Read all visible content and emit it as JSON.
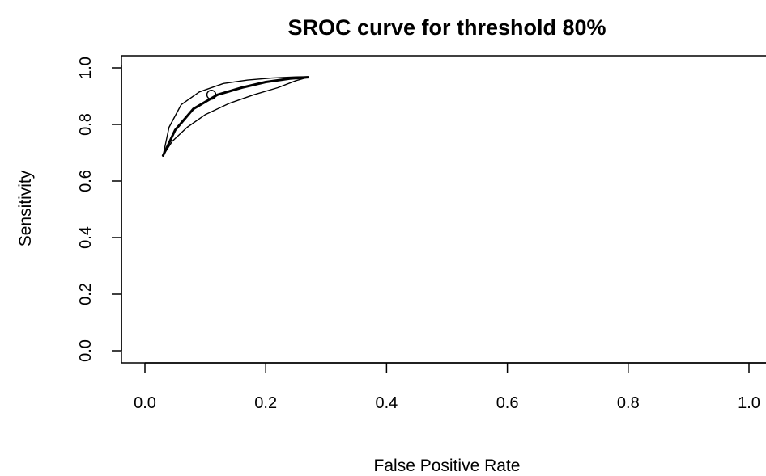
{
  "chart_data": {
    "type": "line",
    "title": "SROC curve for threshold 80%",
    "xlabel": "False Positive Rate",
    "ylabel": "Sensitivity",
    "xlim": [
      0.0,
      1.0
    ],
    "ylim": [
      0.0,
      1.0
    ],
    "xticks": [
      "0.0",
      "0.2",
      "0.4",
      "0.6",
      "0.8",
      "1.0"
    ],
    "yticks": [
      "0.0",
      "0.2",
      "0.4",
      "0.6",
      "0.8",
      "1.0"
    ],
    "grid": false,
    "legend": "none",
    "series": [
      {
        "role": "sroc-curve",
        "x": [
          0.03,
          0.05,
          0.08,
          0.12,
          0.16,
          0.2,
          0.24,
          0.27
        ],
        "y": [
          0.69,
          0.78,
          0.855,
          0.905,
          0.93,
          0.95,
          0.962,
          0.967
        ]
      },
      {
        "role": "upper-confidence-band",
        "x": [
          0.03,
          0.04,
          0.06,
          0.09,
          0.13,
          0.17,
          0.21,
          0.25,
          0.27
        ],
        "y": [
          0.69,
          0.79,
          0.87,
          0.915,
          0.945,
          0.957,
          0.964,
          0.968,
          0.969
        ]
      },
      {
        "role": "lower-confidence-band",
        "x": [
          0.03,
          0.045,
          0.07,
          0.1,
          0.14,
          0.18,
          0.22,
          0.25,
          0.27
        ],
        "y": [
          0.69,
          0.74,
          0.79,
          0.835,
          0.875,
          0.905,
          0.93,
          0.955,
          0.967
        ]
      }
    ],
    "summary_point": {
      "x": 0.11,
      "y": 0.905
    },
    "colors": {
      "foreground": "#000000",
      "background": "#ffffff"
    }
  }
}
